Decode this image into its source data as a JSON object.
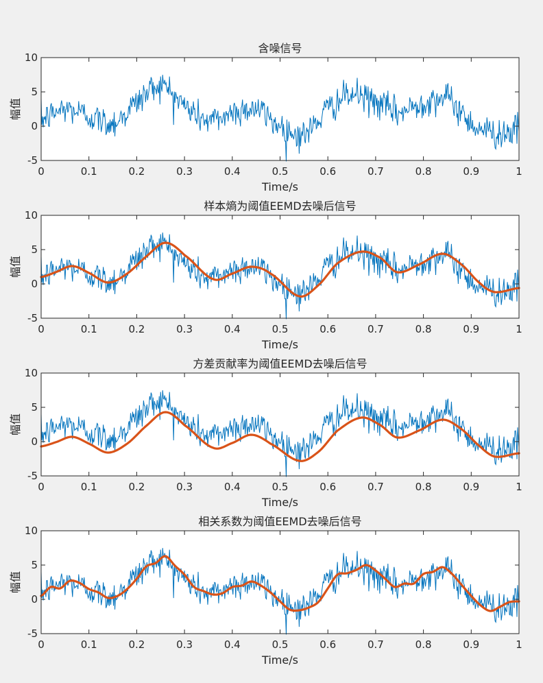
{
  "chart_data": [
    {
      "type": "line",
      "title": "含噪信号",
      "xlabel": "Time/s",
      "ylabel": "幅值",
      "xlim": [
        0,
        1
      ],
      "ylim": [
        -5,
        10
      ],
      "xticks": [
        "0",
        "0.1",
        "0.2",
        "0.3",
        "0.4",
        "0.5",
        "0.6",
        "0.7",
        "0.8",
        "0.9",
        "1"
      ],
      "yticks": [
        "-5",
        "0",
        "5",
        "10"
      ],
      "grid": false,
      "series": [
        {
          "kind": "noisy",
          "color": "#0072bd",
          "x": [
            0,
            0.05,
            0.1,
            0.15,
            0.2,
            0.25,
            0.3,
            0.35,
            0.4,
            0.45,
            0.5,
            0.55,
            0.6,
            0.65,
            0.7,
            0.75,
            0.8,
            0.85,
            0.9,
            0.95,
            1
          ],
          "values": [
            1.0,
            2.5,
            1.5,
            0.5,
            3.5,
            6.0,
            3.0,
            0.8,
            2.0,
            2.5,
            0.0,
            -1.2,
            2.5,
            4.5,
            3.5,
            2.0,
            3.5,
            4.0,
            0.5,
            -1.0,
            -0.5
          ]
        }
      ]
    },
    {
      "type": "line",
      "title": "样本熵为阈值EEMD去噪后信号",
      "xlabel": "Time/s",
      "ylabel": "幅值",
      "xlim": [
        0,
        1
      ],
      "ylim": [
        -5,
        10
      ],
      "xticks": [
        "0",
        "0.1",
        "0.2",
        "0.3",
        "0.4",
        "0.5",
        "0.6",
        "0.7",
        "0.8",
        "0.9",
        "1"
      ],
      "yticks": [
        "-5",
        "0",
        "5",
        "10"
      ],
      "grid": false,
      "series": [
        {
          "kind": "noisy",
          "color": "#0072bd",
          "x": [
            0,
            0.05,
            0.1,
            0.15,
            0.2,
            0.25,
            0.3,
            0.35,
            0.4,
            0.45,
            0.5,
            0.55,
            0.6,
            0.65,
            0.7,
            0.75,
            0.8,
            0.85,
            0.9,
            0.95,
            1
          ],
          "values": [
            1.0,
            2.5,
            1.5,
            0.5,
            3.5,
            6.0,
            3.0,
            0.8,
            2.0,
            2.5,
            0.0,
            -1.2,
            2.5,
            4.5,
            3.5,
            2.0,
            3.5,
            4.0,
            0.5,
            -1.0,
            -0.5
          ]
        },
        {
          "kind": "smooth",
          "color": "#d95319",
          "x": [
            0,
            0.03,
            0.065,
            0.1,
            0.14,
            0.18,
            0.22,
            0.26,
            0.3,
            0.36,
            0.4,
            0.44,
            0.48,
            0.54,
            0.58,
            0.62,
            0.67,
            0.71,
            0.745,
            0.79,
            0.84,
            0.88,
            0.92,
            0.95,
            1
          ],
          "values": [
            1.0,
            1.7,
            2.6,
            1.6,
            0.2,
            1.5,
            4.0,
            6.0,
            4.2,
            0.7,
            1.5,
            2.5,
            1.5,
            -1.8,
            -0.2,
            3.0,
            4.7,
            3.8,
            1.7,
            2.8,
            4.4,
            2.8,
            0.0,
            -1.2,
            -0.6
          ]
        }
      ]
    },
    {
      "type": "line",
      "title": "方差贡献率为阈值EEMD去噪后信号",
      "xlabel": "Time/s",
      "ylabel": "幅值",
      "xlim": [
        0,
        1
      ],
      "ylim": [
        -5,
        10
      ],
      "xticks": [
        "0",
        "0.1",
        "0.2",
        "0.3",
        "0.4",
        "0.5",
        "0.6",
        "0.7",
        "0.8",
        "0.9",
        "1"
      ],
      "yticks": [
        "-5",
        "0",
        "5",
        "10"
      ],
      "grid": false,
      "series": [
        {
          "kind": "noisy",
          "color": "#0072bd",
          "x": [
            0,
            0.05,
            0.1,
            0.15,
            0.2,
            0.25,
            0.3,
            0.35,
            0.4,
            0.45,
            0.5,
            0.55,
            0.6,
            0.65,
            0.7,
            0.75,
            0.8,
            0.85,
            0.9,
            0.95,
            1
          ],
          "values": [
            1.0,
            2.5,
            1.5,
            0.5,
            3.5,
            6.0,
            3.0,
            0.8,
            2.0,
            2.5,
            0.0,
            -1.2,
            2.5,
            4.5,
            3.5,
            2.0,
            3.5,
            4.0,
            0.5,
            -1.0,
            -0.5
          ]
        },
        {
          "kind": "smooth",
          "color": "#d95319",
          "x": [
            0,
            0.03,
            0.065,
            0.1,
            0.14,
            0.18,
            0.22,
            0.26,
            0.3,
            0.36,
            0.4,
            0.44,
            0.48,
            0.54,
            0.58,
            0.62,
            0.67,
            0.71,
            0.745,
            0.79,
            0.84,
            0.88,
            0.92,
            0.95,
            1
          ],
          "values": [
            -0.7,
            -0.1,
            0.7,
            -0.3,
            -1.6,
            -0.3,
            2.3,
            4.3,
            2.4,
            -0.9,
            -0.2,
            1.0,
            -0.3,
            -2.8,
            -1.5,
            1.6,
            3.5,
            2.4,
            0.6,
            1.6,
            3.2,
            1.8,
            -0.8,
            -2.2,
            -1.7
          ]
        }
      ]
    },
    {
      "type": "line",
      "title": "相关系数为阈值EEMD去噪后信号",
      "xlabel": "Time/s",
      "ylabel": "幅值",
      "xlim": [
        0,
        1
      ],
      "ylim": [
        -5,
        10
      ],
      "xticks": [
        "0",
        "0.1",
        "0.2",
        "0.3",
        "0.4",
        "0.5",
        "0.6",
        "0.7",
        "0.8",
        "0.9",
        "1"
      ],
      "yticks": [
        "-5",
        "0",
        "5",
        "10"
      ],
      "grid": false,
      "series": [
        {
          "kind": "noisy",
          "color": "#0072bd",
          "x": [
            0,
            0.05,
            0.1,
            0.15,
            0.2,
            0.25,
            0.3,
            0.35,
            0.4,
            0.45,
            0.5,
            0.55,
            0.6,
            0.65,
            0.7,
            0.75,
            0.8,
            0.85,
            0.9,
            0.95,
            1
          ],
          "values": [
            1.0,
            2.5,
            1.5,
            0.5,
            3.5,
            6.0,
            3.0,
            0.8,
            2.0,
            2.5,
            0.0,
            -1.2,
            2.5,
            4.5,
            3.5,
            2.0,
            3.5,
            4.0,
            0.5,
            -1.0,
            -0.5
          ]
        },
        {
          "kind": "smooth",
          "color": "#d95319",
          "x": [
            0,
            0.02,
            0.04,
            0.06,
            0.08,
            0.1,
            0.12,
            0.14,
            0.16,
            0.18,
            0.2,
            0.22,
            0.24,
            0.26,
            0.28,
            0.3,
            0.32,
            0.34,
            0.36,
            0.38,
            0.4,
            0.42,
            0.44,
            0.46,
            0.48,
            0.5,
            0.52,
            0.54,
            0.56,
            0.58,
            0.6,
            0.62,
            0.64,
            0.66,
            0.68,
            0.7,
            0.72,
            0.74,
            0.76,
            0.78,
            0.8,
            0.82,
            0.84,
            0.86,
            0.88,
            0.9,
            0.92,
            0.94,
            0.96,
            0.98,
            1
          ],
          "values": [
            0.5,
            1.8,
            1.6,
            2.7,
            2.4,
            1.5,
            1.0,
            0.2,
            0.5,
            1.5,
            3.0,
            4.8,
            5.3,
            6.3,
            4.9,
            3.6,
            1.8,
            1.2,
            0.7,
            0.9,
            1.8,
            2.0,
            2.6,
            2.0,
            1.0,
            -0.3,
            -1.5,
            -1.6,
            -1.2,
            -0.4,
            1.6,
            3.6,
            3.8,
            4.3,
            5.0,
            4.2,
            3.0,
            1.8,
            2.3,
            2.3,
            3.7,
            4.0,
            4.7,
            3.7,
            2.1,
            0.5,
            -0.9,
            -1.7,
            -1.1,
            -0.4,
            -0.3
          ]
        }
      ]
    }
  ]
}
